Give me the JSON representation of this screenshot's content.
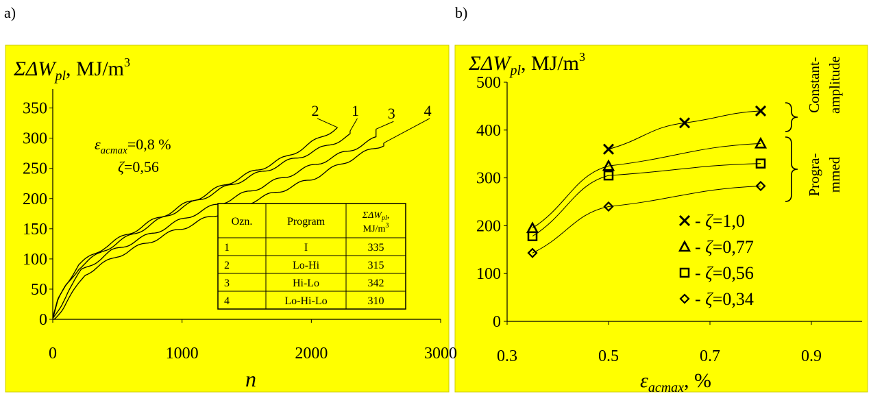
{
  "panel_labels": [
    "a)",
    "b)"
  ],
  "colors": {
    "background": "#FFFF00",
    "line": "#000000"
  },
  "chart_data": [
    {
      "type": "line",
      "panel": "a)",
      "title_parts": {
        "symbol": "ΣΔW",
        "subscript": "pl",
        "unit": ", MJ/m",
        "sup": "3"
      },
      "xlabel": "n",
      "xlim": [
        0,
        3000
      ],
      "ylim": [
        0,
        370
      ],
      "xticks": [
        "0",
        "1000",
        "2000",
        "3000"
      ],
      "yticks": [
        "0",
        "50",
        "100",
        "150",
        "200",
        "250",
        "300",
        "350"
      ],
      "annotation_eps": {
        "symbol": "ε",
        "subscript": "acmax",
        "text": "=0,8 %"
      },
      "annotation_zeta": {
        "symbol": "ζ",
        "text": "=0,56"
      },
      "series": [
        {
          "name": "1",
          "x": [
            0,
            40,
            100,
            200,
            400,
            700,
            1000,
            1400,
            1800,
            2100,
            2300
          ],
          "y": [
            0,
            30,
            55,
            85,
            115,
            150,
            185,
            225,
            260,
            285,
            305
          ],
          "end": [
            2300,
            312
          ],
          "label_pos": [
            2340,
            335
          ]
        },
        {
          "name": "2",
          "x": [
            0,
            40,
            100,
            200,
            400,
            700,
            1000,
            1400,
            1800,
            2050,
            2200
          ],
          "y": [
            0,
            32,
            58,
            90,
            120,
            155,
            188,
            230,
            268,
            298,
            318
          ],
          "end": [
            2200,
            318
          ],
          "label_pos": [
            2030,
            335
          ]
        },
        {
          "name": "3",
          "x": [
            0,
            60,
            120,
            220,
            450,
            800,
            1100,
            1500,
            1900,
            2300,
            2500
          ],
          "y": [
            0,
            22,
            48,
            80,
            112,
            145,
            175,
            210,
            245,
            280,
            300
          ],
          "end": [
            2500,
            315
          ],
          "label_pos": [
            2620,
            330
          ]
        },
        {
          "name": "4",
          "x": [
            0,
            80,
            150,
            250,
            500,
            850,
            1200,
            1600,
            2000,
            2350,
            2560
          ],
          "y": [
            0,
            18,
            42,
            75,
            105,
            138,
            168,
            200,
            232,
            270,
            290
          ],
          "end": [
            2560,
            292
          ],
          "label_pos": [
            2900,
            335
          ]
        }
      ],
      "table": {
        "headers": [
          "Ozn.",
          "Program"
        ],
        "header3": {
          "symbol": "ΣΔW",
          "subscript": "pl",
          "comma": ",",
          "unit": "MJ/m",
          "sup": "3"
        },
        "rows": [
          [
            "1",
            "I",
            "335"
          ],
          [
            "2",
            "Lo-Hi",
            "315"
          ],
          [
            "3",
            "Hi-Lo",
            "342"
          ],
          [
            "4",
            "Lo-Hi-Lo",
            "310"
          ]
        ]
      }
    },
    {
      "type": "line",
      "panel": "b)",
      "title_parts": {
        "symbol": "ΣΔW",
        "subscript": "pl",
        "unit": ", MJ/m",
        "sup": "3"
      },
      "xlabel_parts": {
        "symbol": "ε",
        "subscript": "acmax",
        "unit": ", %"
      },
      "xlim": [
        0.3,
        1.0
      ],
      "ylim": [
        0,
        500
      ],
      "xticks": [
        "0.3",
        "0.5",
        "0.7",
        "0.9"
      ],
      "xtick_values": [
        0.3,
        0.5,
        0.7,
        0.9
      ],
      "yticks": [
        "0",
        "100",
        "200",
        "300",
        "400",
        "500"
      ],
      "series": [
        {
          "name": "ζ=1,0",
          "marker": "x",
          "x": [
            0.5,
            0.65,
            0.8
          ],
          "y": [
            360,
            415,
            440
          ]
        },
        {
          "name": "ζ=0,77",
          "marker": "triangle",
          "x": [
            0.35,
            0.5,
            0.8
          ],
          "y": [
            195,
            325,
            372
          ]
        },
        {
          "name": "ζ=0,56",
          "marker": "square",
          "x": [
            0.35,
            0.5,
            0.8
          ],
          "y": [
            178,
            305,
            330
          ]
        },
        {
          "name": "ζ=0,34",
          "marker": "diamond",
          "x": [
            0.35,
            0.5,
            0.8
          ],
          "y": [
            143,
            240,
            283
          ]
        }
      ],
      "legend": [
        {
          "marker": "x",
          "sym": "ζ",
          "val": "=1,0"
        },
        {
          "marker": "triangle",
          "sym": "ζ",
          "val": "=0,77"
        },
        {
          "marker": "square",
          "sym": "ζ",
          "val": "=0,56"
        },
        {
          "marker": "diamond",
          "sym": "ζ",
          "val": "=0,34"
        }
      ],
      "legend_dash": "-",
      "brace_labels": {
        "constant": [
          "Constant-",
          "amplitude"
        ],
        "programmed": [
          "Progra-",
          "mmed"
        ]
      }
    }
  ]
}
